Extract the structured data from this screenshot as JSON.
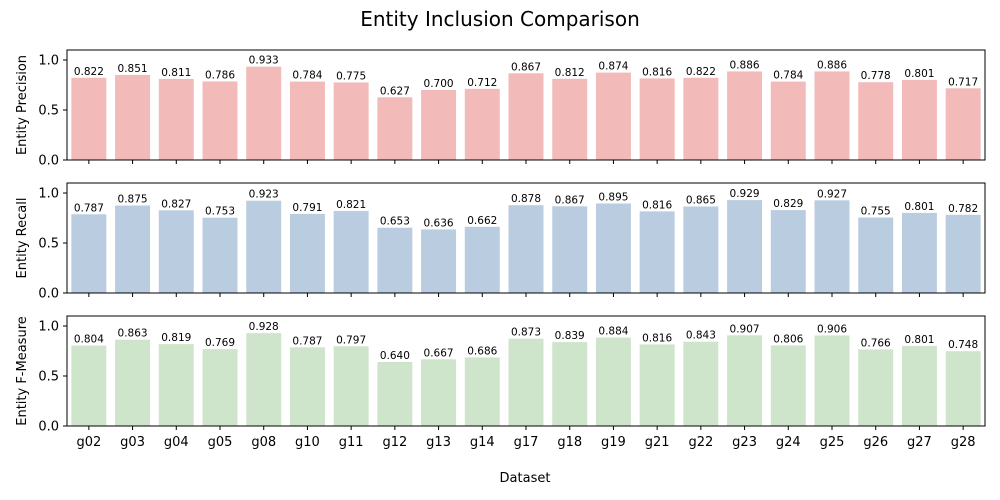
{
  "chart_data": {
    "type": "bar",
    "title": "Entity Inclusion Comparison",
    "xlabel": "Dataset",
    "categories": [
      "g02",
      "g03",
      "g04",
      "g05",
      "g08",
      "g10",
      "g11",
      "g12",
      "g13",
      "g14",
      "g17",
      "g18",
      "g19",
      "g21",
      "g22",
      "g23",
      "g24",
      "g25",
      "g26",
      "g27",
      "g28"
    ],
    "ylim": [
      0,
      1.1
    ],
    "yticks": [
      "0.0",
      "0.5",
      "1.0"
    ],
    "grid": false,
    "panels": [
      {
        "ylabel": "Entity Precision",
        "color": "#f2bab8",
        "values": [
          0.822,
          0.851,
          0.811,
          0.786,
          0.933,
          0.784,
          0.775,
          0.627,
          0.7,
          0.712,
          0.867,
          0.812,
          0.874,
          0.816,
          0.822,
          0.886,
          0.784,
          0.886,
          0.778,
          0.801,
          0.717
        ],
        "labels": [
          "0.822",
          "0.851",
          "0.811",
          "0.786",
          "0.933",
          "0.784",
          "0.775",
          "0.627",
          "0.700",
          "0.712",
          "0.867",
          "0.812",
          "0.874",
          "0.816",
          "0.822",
          "0.886",
          "0.784",
          "0.886",
          "0.778",
          "0.801",
          "0.717"
        ]
      },
      {
        "ylabel": "Entity Recall",
        "color": "#bacce0",
        "values": [
          0.787,
          0.875,
          0.827,
          0.753,
          0.923,
          0.791,
          0.821,
          0.653,
          0.636,
          0.662,
          0.878,
          0.867,
          0.895,
          0.816,
          0.865,
          0.929,
          0.829,
          0.927,
          0.755,
          0.801,
          0.782
        ],
        "labels": [
          "0.787",
          "0.875",
          "0.827",
          "0.753",
          "0.923",
          "0.791",
          "0.821",
          "0.653",
          "0.636",
          "0.662",
          "0.878",
          "0.867",
          "0.895",
          "0.816",
          "0.865",
          "0.929",
          "0.829",
          "0.927",
          "0.755",
          "0.801",
          "0.782"
        ]
      },
      {
        "ylabel": "Entity F-Measure",
        "color": "#cfe5cb",
        "values": [
          0.804,
          0.863,
          0.819,
          0.769,
          0.928,
          0.787,
          0.797,
          0.64,
          0.667,
          0.686,
          0.873,
          0.839,
          0.884,
          0.816,
          0.843,
          0.907,
          0.806,
          0.906,
          0.766,
          0.801,
          0.748
        ],
        "labels": [
          "0.804",
          "0.863",
          "0.819",
          "0.769",
          "0.928",
          "0.787",
          "0.797",
          "0.640",
          "0.667",
          "0.686",
          "0.873",
          "0.839",
          "0.884",
          "0.816",
          "0.843",
          "0.907",
          "0.806",
          "0.906",
          "0.766",
          "0.801",
          "0.748"
        ]
      }
    ]
  }
}
